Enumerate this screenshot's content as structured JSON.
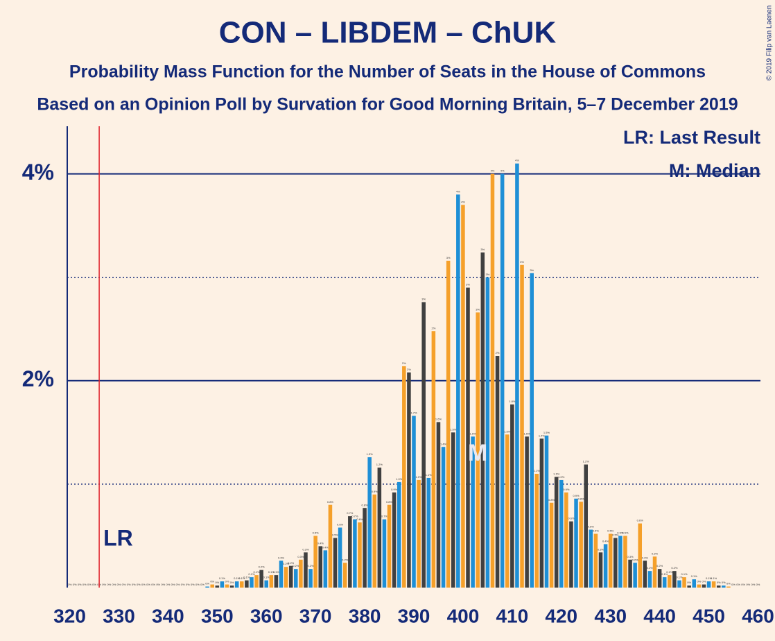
{
  "chart_data": {
    "type": "bar",
    "title": "CON – LIBDEM – ChUK",
    "subtitle": "Probability Mass Function for the Number of Seats in the House of Commons",
    "subtitle2": "Based on an Opinion Poll by Survation for Good Morning Britain, 5–7 December 2019",
    "copyright": "© 2019 Filip van Laenen",
    "x": [
      320,
      321,
      322,
      323,
      324,
      325,
      326,
      327,
      328,
      329,
      330,
      331,
      332,
      333,
      334,
      335,
      336,
      337,
      338,
      339,
      340,
      341,
      342,
      343,
      344,
      345,
      346,
      347,
      348,
      349,
      350,
      351,
      352,
      353,
      354,
      355,
      356,
      357,
      358,
      359,
      360,
      361,
      362,
      363,
      364,
      365,
      366,
      367,
      368,
      369,
      370,
      371,
      372,
      373,
      374,
      375,
      376,
      377,
      378,
      379,
      380,
      381,
      382,
      383,
      384,
      385,
      386,
      387,
      388,
      389,
      390,
      391,
      392,
      393,
      394,
      395,
      396,
      397,
      398,
      399,
      400,
      401,
      402,
      403,
      404,
      405,
      406,
      407,
      408,
      409,
      410,
      411,
      412,
      413,
      414,
      415,
      416,
      417,
      418,
      419,
      420,
      421,
      422,
      423,
      424,
      425,
      426,
      427,
      428,
      429,
      430,
      431,
      432,
      433,
      434,
      435,
      436,
      437,
      438,
      439,
      440,
      441,
      442,
      443,
      444,
      445,
      446,
      447,
      448,
      449,
      450,
      451,
      452,
      453,
      454,
      455,
      456,
      457,
      458,
      459,
      460
    ],
    "values": [
      0,
      0,
      0,
      0,
      0,
      0,
      0,
      0,
      0,
      0,
      0,
      0,
      0,
      0,
      0,
      0,
      0,
      0,
      0,
      0,
      0,
      0,
      0,
      0,
      0,
      0,
      0,
      0,
      0.01,
      0.03,
      0.02,
      0.06,
      0.03,
      0.02,
      0.06,
      0.06,
      0.07,
      0.1,
      0.12,
      0.17,
      0.07,
      0.12,
      0.12,
      0.26,
      0.2,
      0.21,
      0.18,
      0.27,
      0.34,
      0.18,
      0.5,
      0.4,
      0.36,
      0.8,
      0.48,
      0.58,
      0.24,
      0.69,
      0.66,
      0.63,
      0.77,
      1.26,
      0.9,
      1.16,
      0.66,
      0.8,
      0.92,
      1.02,
      2.14,
      2.08,
      1.66,
      1.04,
      2.76,
      1.06,
      2.48,
      1.6,
      1.36,
      3.16,
      1.5,
      3.8,
      3.7,
      2.9,
      1.46,
      2.66,
      3.24,
      3.0,
      4.0,
      2.24,
      4.0,
      1.48,
      1.77,
      4.1,
      3.12,
      1.46,
      3.04,
      1.1,
      1.44,
      1.47,
      0.82,
      1.07,
      1.04,
      0.92,
      0.64,
      0.86,
      0.83,
      1.19,
      0.56,
      0.52,
      0.34,
      0.42,
      0.52,
      0.48,
      0.5,
      0.5,
      0.27,
      0.24,
      0.62,
      0.26,
      0.16,
      0.3,
      0.18,
      0.1,
      0.12,
      0.16,
      0.07,
      0.1,
      0.02,
      0.08,
      0.03,
      0.03,
      0.06,
      0.06,
      0.02,
      0.02,
      0.01,
      0,
      0,
      0,
      0,
      0,
      0
    ],
    "value_labels": [
      "0%",
      "0%",
      "0%",
      "0%",
      "0%",
      "0%",
      "0%",
      "0%",
      "0%",
      "0%",
      "0%",
      "0%",
      "0%",
      "0%",
      "0%",
      "0%",
      "0%",
      "0%",
      "0%",
      "0%",
      "0%",
      "0%",
      "0%",
      "0%",
      "0%",
      "0%",
      "0%",
      "0%",
      "0%",
      "0%",
      "0%",
      "0.1%",
      "0%",
      "0%",
      "0.1%",
      "0.1%",
      "0.1%",
      "0.1%",
      "0.1%",
      "0.2%",
      "0.1%",
      "0.1%",
      "0.1%",
      "0.3%",
      "0.2%",
      "0.2%",
      "0.2%",
      "0.3%",
      "0.3%",
      "0.2%",
      "0.5%",
      "0.4%",
      "0.4%",
      "0.8%",
      "0.5%",
      "0.6%",
      "0.2%",
      "0.7%",
      "0.7%",
      "0.6%",
      "0.8%",
      "1.3%",
      "0.9%",
      "1.2%",
      "0.7%",
      "0.8%",
      "0.9%",
      "1.0%",
      "2%",
      "2%",
      "1.7%",
      "1.0%",
      "3%",
      "1.1%",
      "2%",
      "1.6%",
      "1.4%",
      "3%",
      "1.5%",
      "4%",
      "4%",
      "3%",
      "1.5%",
      "3%",
      "3%",
      "3%",
      "4%",
      "2%",
      "4%",
      "1.5%",
      "1.8%",
      "4%",
      "3%",
      "1.5%",
      "3%",
      "1.1%",
      "1.4%",
      "1.5%",
      "0.8%",
      "1.1%",
      "1.0%",
      "0.9%",
      "0.6%",
      "0.9%",
      "0.8%",
      "1.2%",
      "0.6%",
      "0.5%",
      "0.3%",
      "0.4%",
      "0.5%",
      "0.5%",
      "0.5%",
      "0.5%",
      "0.3%",
      "0.2%",
      "0.6%",
      "0.3%",
      "0.2%",
      "0.3%",
      "0.2%",
      "0.1%",
      "0.1%",
      "0.2%",
      "0.1%",
      "0.1%",
      "0%",
      "0.1%",
      "0%",
      "0%",
      "0.1%",
      "0.1%",
      "0%",
      "0%",
      "0%",
      "0%",
      "0%",
      "0%",
      "0%",
      "0%",
      "0%"
    ],
    "colors": [
      "#404040",
      "#1e8fd6",
      "#f5a02a"
    ],
    "xlim": [
      319.5,
      460.5
    ],
    "xticks": [
      320,
      330,
      340,
      350,
      360,
      370,
      380,
      390,
      400,
      410,
      420,
      430,
      440,
      450,
      460
    ],
    "ylim": [
      0,
      4.46
    ],
    "yticks": [
      {
        "value": 2,
        "label": "2%"
      },
      {
        "value": 4,
        "label": "4%"
      }
    ],
    "minor_yticks": [
      1,
      3
    ],
    "grid": true,
    "last_result": 326,
    "last_result_label": "LR",
    "median": 403,
    "median_label": "M",
    "legend": [
      "LR: Last Result",
      "M: Median"
    ]
  }
}
